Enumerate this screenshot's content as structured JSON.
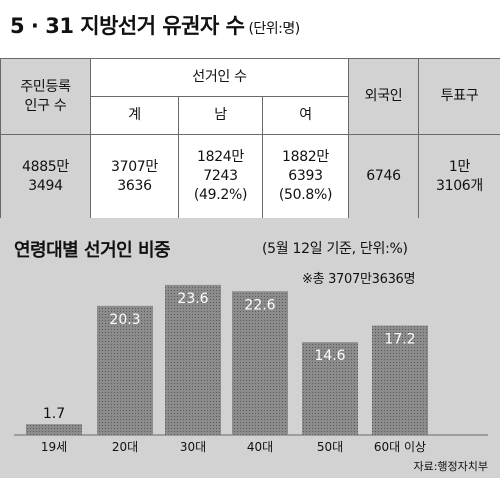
{
  "header": {
    "title": "5 · 31 지방선거 유권자 수",
    "unit": "(단위:명)"
  },
  "table": {
    "col_population": [
      "주민등록",
      "인구 수"
    ],
    "col_voters": "선거인 수",
    "sub_total": "계",
    "sub_male": "남",
    "sub_female": "여",
    "col_foreigners": "외국인",
    "col_districts": "투표구",
    "population": [
      "4885만",
      "3494"
    ],
    "total": [
      "3707만",
      "3636"
    ],
    "male": [
      "1824만",
      "7243",
      "(49.2%)"
    ],
    "female": [
      "1882만",
      "6393",
      "(50.8%)"
    ],
    "foreigners": "6746",
    "districts": [
      "1만",
      "3106개"
    ]
  },
  "chart_data": {
    "type": "bar",
    "title": "연령대별 선거인 비중",
    "note": "(5월 12일 기준, 단위:%)",
    "total_note": "※총 3707만3636명",
    "source": "자료:행정자치부",
    "categories": [
      "19세",
      "20대",
      "30대",
      "40대",
      "50대",
      "60대 이상"
    ],
    "values": [
      1.7,
      20.3,
      23.6,
      22.6,
      14.6,
      17.2
    ],
    "value_labels": [
      "1.7",
      "20.3",
      "23.6",
      "22.6",
      "14.6",
      "17.2"
    ],
    "ylim": [
      0,
      25
    ],
    "grid": false,
    "colors": {
      "bar": "#8c8c8c",
      "bar_dots": "#555555",
      "background": "#d2d2d2"
    }
  }
}
